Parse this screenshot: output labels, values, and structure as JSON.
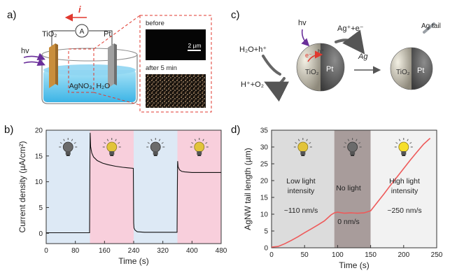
{
  "panels": {
    "a": {
      "letter": "a)",
      "current_symbol": "i",
      "ammeter_symbol": "A",
      "tio2_label": "TiO₂",
      "pt_label": "Pt",
      "hv_label": "hv",
      "solution_label": "AgNO₃, H₂O",
      "before_label": "before",
      "scale_label": "2 µm",
      "after_label": "after 5 min"
    },
    "b": {
      "letter": "b)"
    },
    "c": {
      "letter": "c)",
      "hv_label": "hv",
      "reaction_in": "H₂O+h⁺",
      "reaction_out": "H⁺+O₂",
      "ag_reaction": "Ag⁺+e⁻",
      "ag_product": "Ag",
      "electron_label": "e⁻",
      "hole_label": "h⁺",
      "tio2_label": "TiO₂",
      "pt_label": "Pt",
      "tio2_label_2": "TiO₂",
      "pt_label_2": "Pt",
      "ag_tail_label": "Ag tail"
    },
    "d": {
      "letter": "d)",
      "region_low_line1": "Low light",
      "region_low_line2": "intensity",
      "region_low_rate": "~110 nm/s",
      "region_none": "No light",
      "region_none_rate": "0 nm/s",
      "region_high_line1": "High light",
      "region_high_line2": "intensity",
      "region_high_rate": "~250 nm/s"
    }
  },
  "chart_data": [
    {
      "panel": "b",
      "type": "line",
      "xlabel": "Time (s)",
      "ylabel": "Current density (µA/cm²)",
      "xlim": [
        0,
        480
      ],
      "ylim": [
        -2,
        20
      ],
      "xticks": [
        0,
        80,
        160,
        240,
        320,
        400,
        480
      ],
      "yticks": [
        0,
        5,
        10,
        15,
        20
      ],
      "colors": {
        "dark_region": "#dde9f5",
        "light_region": "#f8cfdc",
        "line": "#111111"
      },
      "regions": [
        {
          "x0": 0,
          "x1": 120,
          "state": "off",
          "icon": "bulb-off-icon"
        },
        {
          "x0": 120,
          "x1": 240,
          "state": "on",
          "icon": "bulb-on-icon"
        },
        {
          "x0": 240,
          "x1": 360,
          "state": "off",
          "icon": "bulb-off-icon"
        },
        {
          "x0": 360,
          "x1": 480,
          "state": "on",
          "icon": "bulb-on-icon"
        }
      ],
      "series": [
        {
          "x": [
            0,
            60,
            119,
            120,
            120.5,
            122,
            125,
            130,
            140,
            155,
            170,
            190,
            210,
            225,
            239,
            240,
            241,
            244,
            250,
            270,
            300,
            330,
            359,
            360,
            360.5,
            362,
            366,
            372,
            380,
            400,
            430,
            460,
            480
          ],
          "y": [
            0.1,
            0.1,
            0.1,
            14.5,
            19.5,
            16.8,
            15.6,
            14.8,
            14.1,
            13.6,
            13.3,
            13.0,
            12.8,
            12.7,
            12.6,
            2.0,
            1.0,
            0.6,
            0.3,
            0.2,
            0.2,
            0.2,
            0.2,
            10.0,
            14.0,
            12.9,
            12.3,
            12.0,
            11.9,
            11.8,
            11.8,
            11.8,
            11.8
          ]
        }
      ]
    },
    {
      "panel": "d",
      "type": "line",
      "xlabel": "Time (s)",
      "ylabel": "AgNW tail length (µm)",
      "xlim": [
        0,
        250
      ],
      "ylim": [
        0,
        35
      ],
      "xticks": [
        0,
        50,
        100,
        150,
        200,
        250
      ],
      "yticks": [
        0,
        5,
        10,
        15,
        20,
        25,
        30,
        35
      ],
      "colors": {
        "low_region": "#dcdcdc",
        "none_region": "#a89c9b",
        "high_region": "#f2f2f2",
        "line": "#ee5a5a"
      },
      "regions": [
        {
          "x0": 0,
          "x1": 95,
          "state": "low",
          "icon": "bulb-on-icon"
        },
        {
          "x0": 95,
          "x1": 150,
          "state": "none",
          "icon": "bulb-off-icon"
        },
        {
          "x0": 150,
          "x1": 250,
          "state": "high",
          "icon": "bulb-bright-icon"
        }
      ],
      "series": [
        {
          "x": [
            0,
            10,
            20,
            30,
            40,
            50,
            60,
            70,
            80,
            90,
            95,
            100,
            110,
            120,
            130,
            140,
            150,
            160,
            170,
            180,
            190,
            200,
            210,
            220,
            230,
            240
          ],
          "y": [
            0.2,
            0.4,
            1.2,
            2.2,
            3.3,
            4.5,
            5.6,
            6.8,
            8.0,
            9.8,
            10.4,
            10.6,
            10.3,
            10.4,
            10.3,
            10.4,
            11.0,
            13.5,
            16.0,
            18.6,
            21.1,
            23.6,
            26.1,
            28.5,
            30.8,
            32.6
          ]
        }
      ]
    }
  ]
}
